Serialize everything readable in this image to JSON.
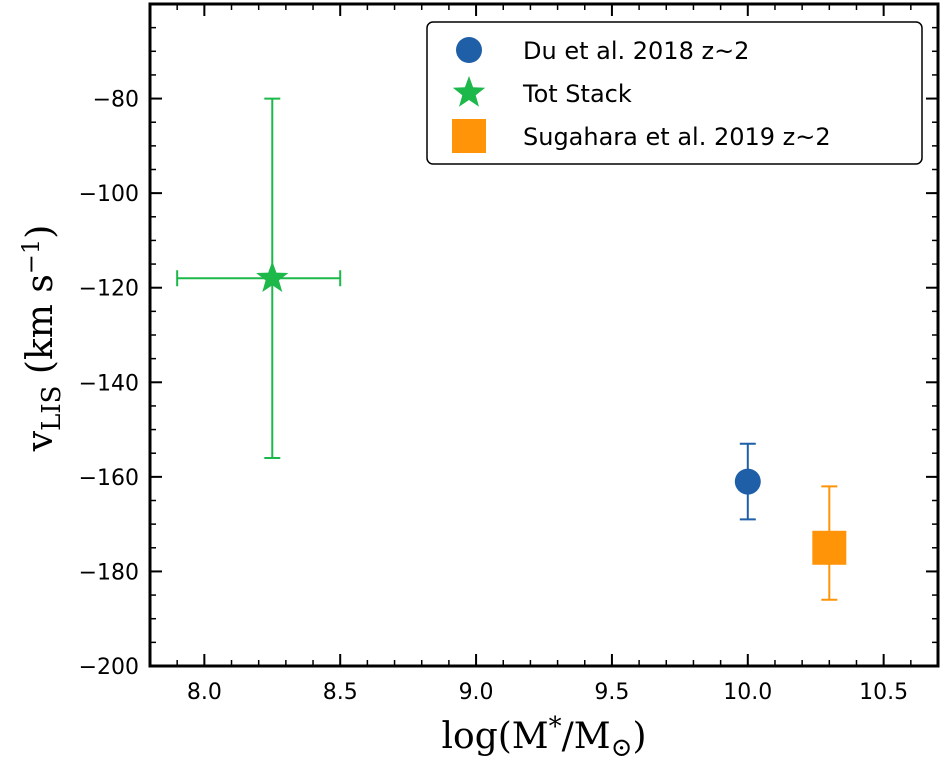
{
  "chart_data": {
    "type": "scatter",
    "xlabel": "log(M*/M⊙)",
    "ylabel": "vLIS (km s−1)",
    "xlim": [
      7.8,
      10.7
    ],
    "ylim": [
      -200,
      -60
    ],
    "x_ticks": [
      8.0,
      8.5,
      9.0,
      9.5,
      10.0,
      10.5
    ],
    "x_tick_labels": [
      "8.0",
      "8.5",
      "9.0",
      "9.5",
      "10.0",
      "10.5"
    ],
    "y_ticks": [
      -200,
      -180,
      -160,
      -140,
      -120,
      -100,
      -80
    ],
    "y_tick_labels": [
      "−200",
      "−180",
      "−160",
      "−140",
      "−120",
      "−100",
      "−80"
    ],
    "grid": false,
    "legend": "top-right",
    "series": [
      {
        "name": "Du et al. 2018 z~2",
        "marker": "circle",
        "color": "#1f5fa8",
        "points": [
          {
            "x": 10.0,
            "y": -161,
            "yerr_low": -169,
            "yerr_high": -153
          }
        ]
      },
      {
        "name": "Tot Stack",
        "marker": "star",
        "color": "#1cb84a",
        "points": [
          {
            "x": 8.25,
            "y": -118,
            "xerr_low": 7.9,
            "xerr_high": 8.5,
            "yerr_low": -156,
            "yerr_high": -80
          }
        ]
      },
      {
        "name": "Sugahara et al. 2019 z~2",
        "marker": "square",
        "color": "#ff9408",
        "points": [
          {
            "x": 10.3,
            "y": -175,
            "yerr_low": -186,
            "yerr_high": -162
          }
        ]
      }
    ]
  }
}
